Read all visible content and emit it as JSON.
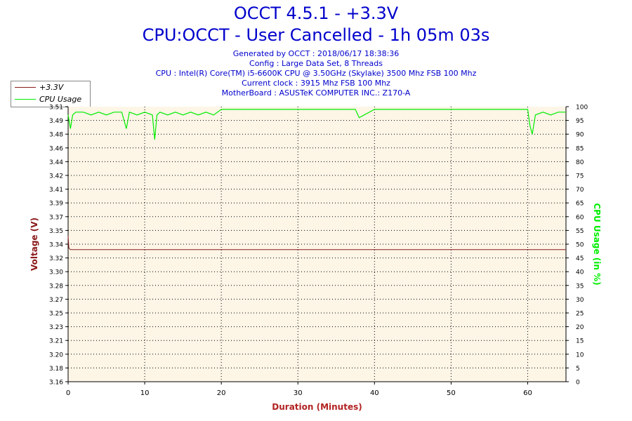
{
  "header": {
    "title_line1": "OCCT 4.5.1 - +3.3V",
    "title_line2": "CPU:OCCT - User Cancelled - 1h 05m 03s",
    "info": [
      "Generated by OCCT : 2018/06/17 18:38:36",
      "Config : Large Data Set, 8 Threads",
      "CPU : Intel(R) Core(TM) i5-6600K CPU @ 3.50GHz (Skylake) 3500 Mhz FSB 100 Mhz",
      "Current clock : 3915 Mhz FSB 100 Mhz",
      "MotherBoard : ASUSTeK COMPUTER INC.: Z170-A"
    ]
  },
  "legend": {
    "voltage_label": "+3.3V",
    "cpu_label": "CPU Usage"
  },
  "colors": {
    "voltage": "#8b1a1a",
    "cpu": "#00ee00",
    "plot_bg": "#fdf5e6",
    "title": "#0000cc",
    "axis_label_left": "#8b1a1a",
    "axis_label_x": "#b22222",
    "axis_label_right": "#00ee00"
  },
  "chart_data": {
    "type": "line",
    "xlabel": "Duration (Minutes)",
    "ylabel": "Voltage (V)",
    "y2label": "CPU Usage (in %)",
    "xlim": [
      0,
      65
    ],
    "ylim": [
      3.16,
      3.51
    ],
    "y2lim": [
      0,
      100
    ],
    "x_ticks": [
      0,
      10,
      20,
      30,
      40,
      50,
      60
    ],
    "y_tick_labels": [
      "3.16",
      "3.18",
      "3.20",
      "3.21",
      "3.23",
      "3.25",
      "3.27",
      "3.28",
      "3.30",
      "3.32",
      "3.34",
      "3.35",
      "3.37",
      "3.39",
      "3.41",
      "3.42",
      "3.44",
      "3.46",
      "3.48",
      "3.49",
      "3.51"
    ],
    "y2_ticks": [
      0,
      5,
      10,
      15,
      20,
      25,
      30,
      35,
      40,
      45,
      50,
      55,
      60,
      65,
      70,
      75,
      80,
      85,
      90,
      95,
      100
    ],
    "grid": true,
    "legend_position": "top-left",
    "series": [
      {
        "name": "+3.3V",
        "axis": "left",
        "x": [
          0,
          0.1,
          0.3,
          65
        ],
        "y": [
          3.345,
          3.33,
          3.328,
          3.328
        ]
      },
      {
        "name": "CPU Usage",
        "axis": "right",
        "x": [
          0,
          0.3,
          0.6,
          1,
          2,
          3,
          4,
          5,
          6,
          7,
          7.6,
          8,
          9,
          10,
          11,
          11.3,
          11.6,
          12,
          13,
          14,
          15,
          16,
          17,
          18,
          19,
          20,
          22,
          25,
          28,
          30,
          32,
          35,
          37.5,
          38,
          40,
          42,
          45,
          48,
          50,
          52,
          55,
          58,
          60,
          60.3,
          60.6,
          61,
          62,
          63,
          64,
          65
        ],
        "y": [
          97,
          92,
          97,
          98,
          98,
          97,
          98,
          97,
          98,
          98,
          92,
          98,
          97,
          98,
          97,
          88,
          97,
          98,
          97,
          98,
          97,
          98,
          97,
          98,
          97,
          99,
          99,
          99,
          99,
          99,
          99,
          99,
          99,
          96,
          99,
          99,
          99,
          99,
          99,
          99,
          99,
          99,
          99,
          93,
          90,
          97,
          98,
          97,
          98,
          98
        ]
      }
    ]
  }
}
